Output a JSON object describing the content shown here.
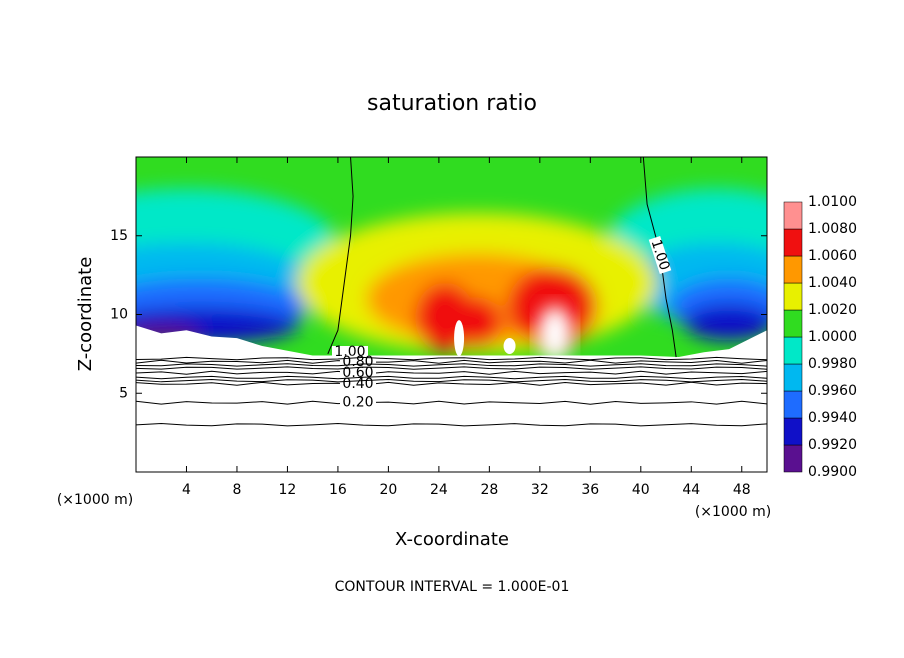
{
  "chart_data": {
    "type": "contour",
    "title": "saturation ratio",
    "x_label": "X-coordinate",
    "y_label": "Z-coordinate",
    "x_unit_left": "(×1000 m)",
    "x_unit_right": "(×1000 m)",
    "footer": "CONTOUR INTERVAL = 1.000E-01",
    "xlim": [
      0,
      50
    ],
    "ylim": [
      0,
      20
    ],
    "xticks": [
      4,
      8,
      12,
      16,
      20,
      24,
      28,
      32,
      36,
      40,
      44,
      48
    ],
    "yticks": [
      5,
      10,
      15
    ],
    "contours": [
      {
        "level": 1.0,
        "label": "1.00"
      },
      {
        "level": 1.0,
        "label": "1.00"
      },
      {
        "level": 0.8,
        "label": "0.80"
      },
      {
        "level": 0.6,
        "label": "0.60"
      },
      {
        "level": 0.4,
        "label": "0.40"
      },
      {
        "level": 0.2,
        "label": "0.20"
      }
    ],
    "colorbar": {
      "levels": [
        {
          "value": 0.99,
          "label": "0.9900"
        },
        {
          "value": 0.992,
          "label": "0.9920"
        },
        {
          "value": 0.994,
          "label": "0.9940"
        },
        {
          "value": 0.996,
          "label": "0.9960"
        },
        {
          "value": 0.998,
          "label": "0.9980"
        },
        {
          "value": 1.0,
          "label": "1.0000"
        },
        {
          "value": 1.002,
          "label": "1.0020"
        },
        {
          "value": 1.004,
          "label": "1.0040"
        },
        {
          "value": 1.006,
          "label": "1.0060"
        },
        {
          "value": 1.008,
          "label": "1.0080"
        },
        {
          "value": 1.01,
          "label": "1.0100"
        }
      ],
      "colors": [
        "#5a1090",
        "#1010c8",
        "#1e6cff",
        "#00b8f0",
        "#00e8c8",
        "#30dc20",
        "#e8f000",
        "#ff9800",
        "#f01010",
        "#ff9090"
      ]
    }
  }
}
